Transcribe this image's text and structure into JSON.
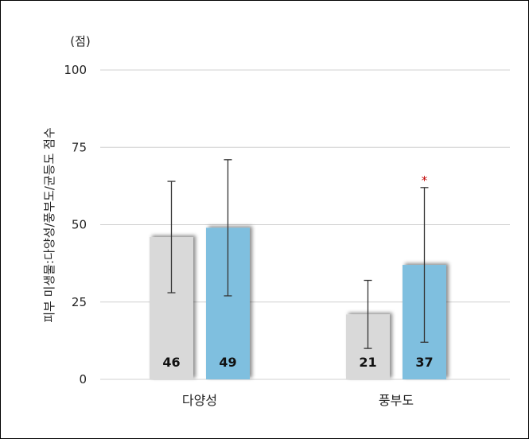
{
  "chart_data": {
    "type": "bar",
    "unit_label": "(점)",
    "ylabel": "피부 미생물:다양성/풍부도/균등도 점수",
    "xlabel": "",
    "ylim": [
      0,
      100
    ],
    "yticks": [
      "0",
      "25",
      "50",
      "75",
      "100"
    ],
    "grid": true,
    "categories": [
      "다양성",
      "풍부도"
    ],
    "series": [
      {
        "color": "#d9d9d9",
        "values": [
          46,
          21
        ],
        "labels": [
          "46",
          "21"
        ],
        "error_low": [
          28,
          10
        ],
        "error_high": [
          64,
          32
        ]
      },
      {
        "color": "#7fbfdf",
        "values": [
          49,
          37
        ],
        "labels": [
          "49",
          "37"
        ],
        "error_low": [
          27,
          12
        ],
        "error_high": [
          71,
          62
        ]
      }
    ],
    "annotations": [
      {
        "text": "*",
        "category": "풍부도",
        "series": 1,
        "color": "#c00000"
      }
    ]
  }
}
